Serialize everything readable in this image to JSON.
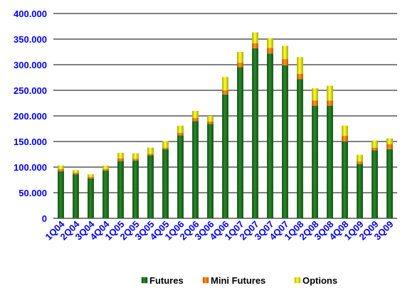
{
  "chart_data": {
    "type": "bar",
    "stacked": true,
    "categories": [
      "1Q04",
      "2Q04",
      "3Q04",
      "4Q04",
      "1Q05",
      "2Q05",
      "3Q05",
      "4Q05",
      "1Q06",
      "2Q06",
      "3Q06",
      "4Q06",
      "1Q07",
      "2Q07",
      "3Q07",
      "4Q07",
      "1Q08",
      "2Q08",
      "3Q08",
      "4Q08",
      "1Q09",
      "2Q09",
      "3Q09"
    ],
    "series": [
      {
        "name": "Futures",
        "color": "#1a6e1a",
        "values": [
          92000,
          86000,
          78000,
          93000,
          112000,
          113000,
          123000,
          135000,
          162000,
          190000,
          184000,
          242000,
          295000,
          332000,
          322000,
          299000,
          272000,
          220000,
          220000,
          150000,
          106000,
          133000,
          135000
        ]
      },
      {
        "name": "Mini Futures",
        "color": "#f07800",
        "values": [
          4000,
          3000,
          3000,
          3000,
          5000,
          3000,
          3000,
          3000,
          5000,
          6000,
          5000,
          8000,
          9000,
          10000,
          11000,
          12000,
          10000,
          10000,
          10000,
          11000,
          5000,
          5000,
          10000
        ]
      },
      {
        "name": "Options",
        "color": "#e6e600",
        "values": [
          7000,
          5000,
          5000,
          7000,
          11000,
          11000,
          12000,
          13000,
          14000,
          14000,
          11000,
          26000,
          21000,
          21000,
          19000,
          26000,
          33000,
          24000,
          29000,
          20000,
          13000,
          14000,
          11000
        ]
      }
    ],
    "yticks": [
      "0",
      "50.000",
      "100.000",
      "150.000",
      "200.000",
      "250.000",
      "300.000",
      "350.000",
      "400.000"
    ],
    "ylim": [
      0,
      400000
    ],
    "grid": true,
    "legend_position": "bottom",
    "title": "",
    "xlabel": "",
    "ylabel": ""
  }
}
